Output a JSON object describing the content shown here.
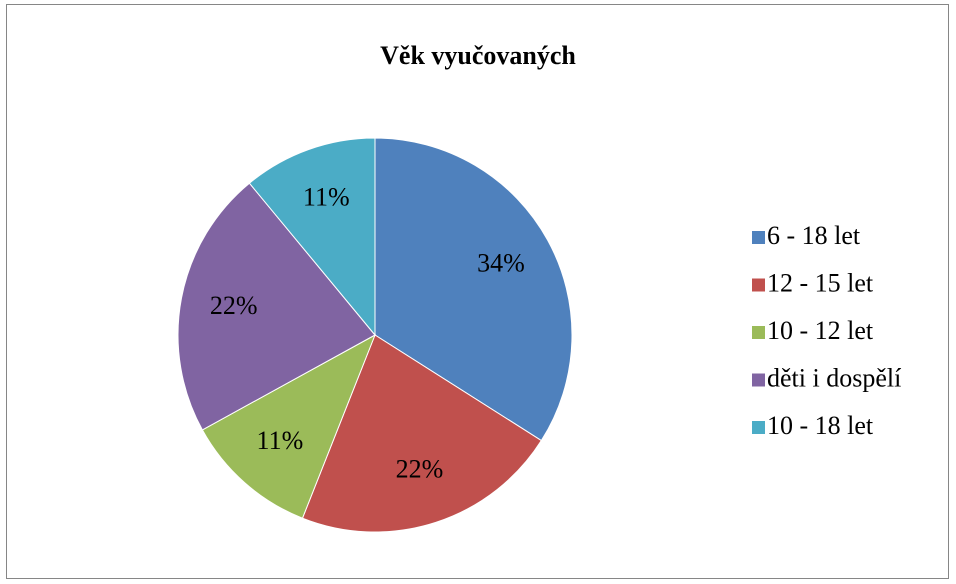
{
  "chart_data": {
    "type": "pie",
    "title": "Věk vyučovaných",
    "categories": [
      "6 - 18 let",
      "12 - 15 let",
      "10 - 12 let",
      "děti i dospělí",
      "10 - 18 let"
    ],
    "values": [
      34,
      22,
      11,
      22,
      11
    ],
    "value_labels": [
      "34%",
      "22%",
      "11%",
      "22%",
      "11%"
    ],
    "colors": [
      "#4f81bd",
      "#c0504d",
      "#9bbb59",
      "#8064a2",
      "#4bacc6"
    ],
    "legend": "right"
  }
}
